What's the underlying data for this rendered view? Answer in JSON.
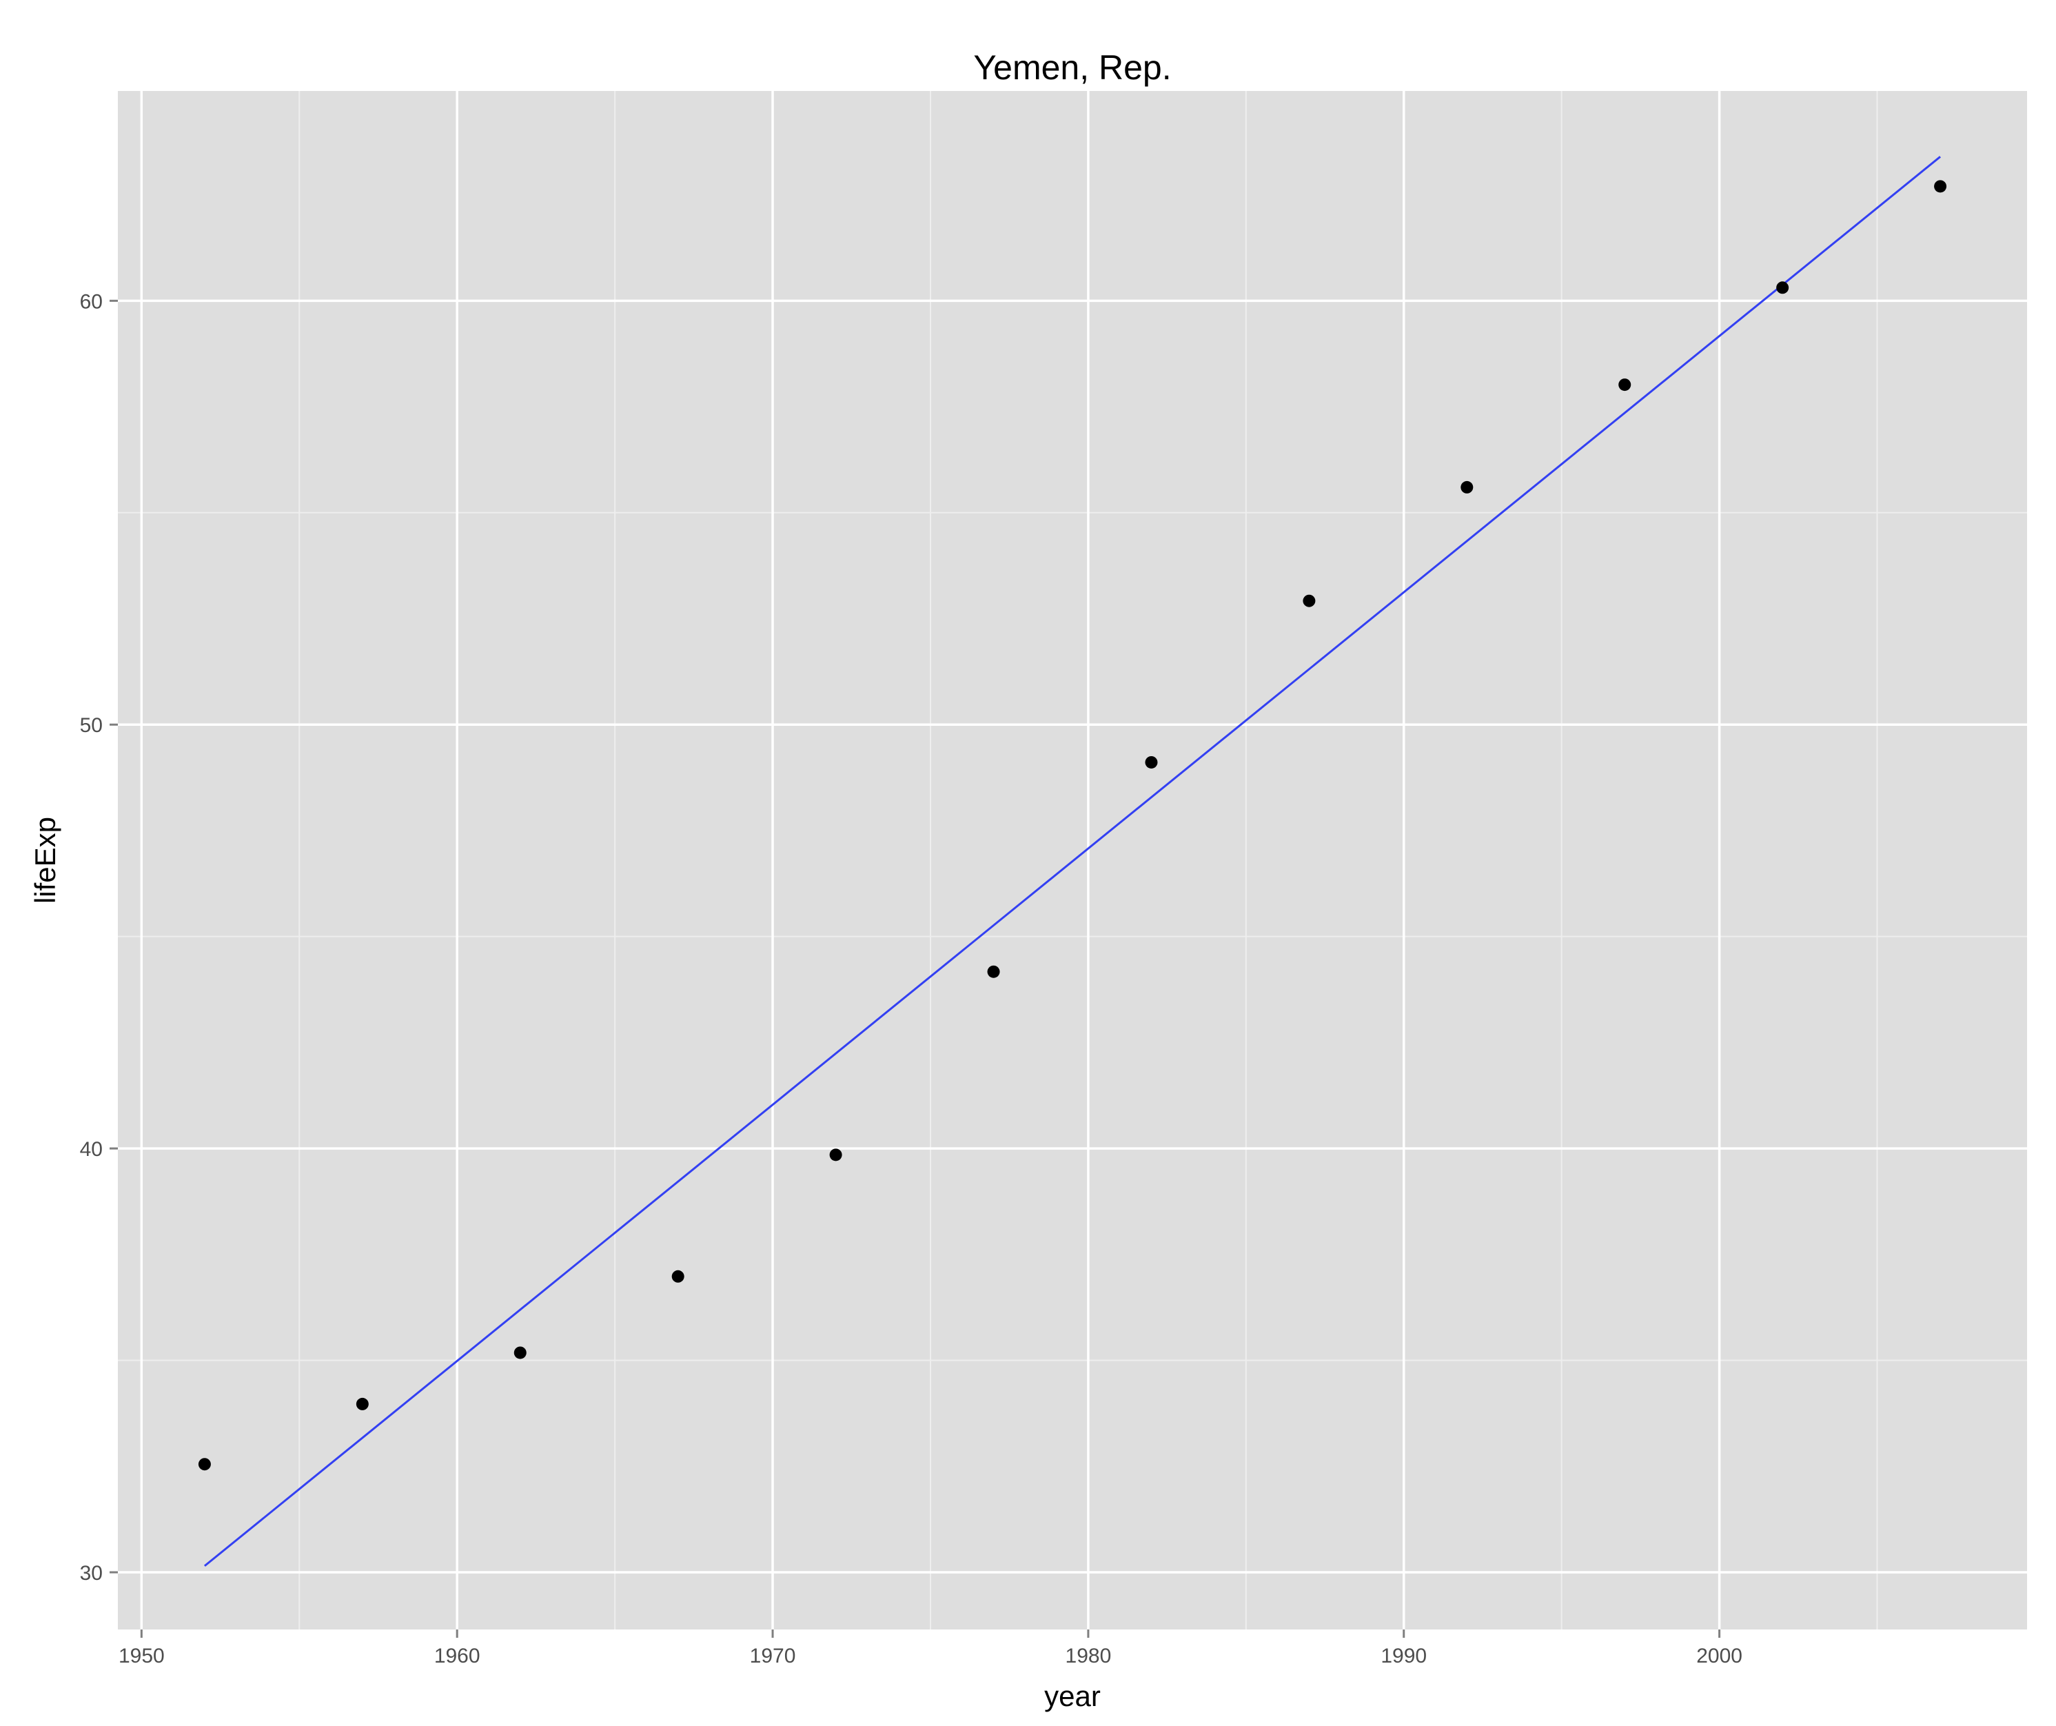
{
  "chart_data": {
    "type": "scatter",
    "title": "Yemen, Rep.",
    "xlabel": "year",
    "ylabel": "lifeExp",
    "xlim": [
      1949.25,
      2009.75
    ],
    "ylim": [
      28.65,
      64.95
    ],
    "x_major_ticks": [
      1950,
      1960,
      1970,
      1980,
      1990,
      2000
    ],
    "x_minor_ticks": [
      1955,
      1965,
      1975,
      1985,
      1995,
      2005
    ],
    "y_major_ticks": [
      30,
      40,
      50,
      60
    ],
    "y_minor_ticks": [
      35,
      45,
      55
    ],
    "x_tick_labels": [
      "1950",
      "1960",
      "1970",
      "1980",
      "1990",
      "2000"
    ],
    "y_tick_labels": [
      "30",
      "40",
      "50",
      "60"
    ],
    "grid": true,
    "series": [
      {
        "type": "scatter",
        "x": [
          1952,
          1957,
          1962,
          1967,
          1972,
          1977,
          1982,
          1987,
          1992,
          1997,
          2002,
          2007
        ],
        "y": [
          32.55,
          33.97,
          35.18,
          36.98,
          39.85,
          44.17,
          49.11,
          52.92,
          55.6,
          58.02,
          60.31,
          62.7
        ]
      },
      {
        "type": "line",
        "x": [
          1952,
          2007
        ],
        "y": [
          30.15,
          63.4
        ]
      }
    ],
    "colors": {
      "panel": "#dedede",
      "grid_major": "#ffffff",
      "grid_minor": "#eeeeee",
      "points": "#000000",
      "fit_line": "#3340f2",
      "tick_label": "#4d4d4d"
    }
  }
}
